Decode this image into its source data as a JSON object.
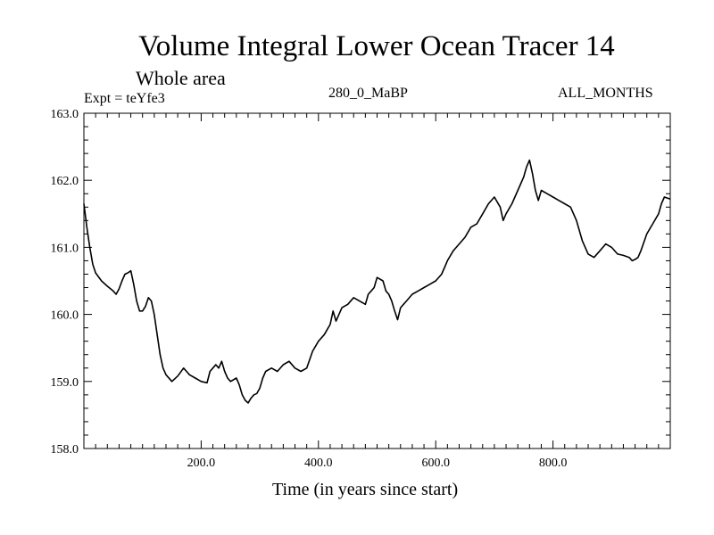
{
  "header": {
    "title": "Volume Integral Lower Ocean Tracer 14",
    "subtitle": "Whole area",
    "expt": "Expt = teYfe3",
    "center_label": "280_0_MaBP",
    "right_label": "ALL_MONTHS"
  },
  "chart_data": {
    "type": "line",
    "title": "Volume Integral Lower Ocean Tracer 14",
    "subtitle": "Whole area",
    "xlabel": "Time (in years since start)",
    "ylabel": "",
    "xlim": [
      0,
      1000
    ],
    "ylim": [
      158.0,
      163.0
    ],
    "xticks": [
      200,
      400,
      600,
      800
    ],
    "xtick_labels": [
      "200.0",
      "400.0",
      "600.0",
      "800.0"
    ],
    "yticks": [
      158.0,
      159.0,
      160.0,
      161.0,
      162.0,
      163.0
    ],
    "ytick_labels": [
      "158.0",
      "159.0",
      "160.0",
      "161.0",
      "162.0",
      "163.0"
    ],
    "grid": false,
    "series": [
      {
        "name": "Lower Ocean Tracer 14",
        "color": "#000000",
        "x": [
          0,
          5,
          10,
          15,
          20,
          30,
          40,
          50,
          55,
          60,
          65,
          70,
          75,
          80,
          85,
          90,
          95,
          100,
          105,
          110,
          115,
          120,
          125,
          130,
          135,
          140,
          150,
          160,
          170,
          175,
          180,
          190,
          200,
          210,
          215,
          220,
          225,
          230,
          235,
          240,
          245,
          250,
          260,
          265,
          270,
          275,
          280,
          285,
          290,
          295,
          300,
          305,
          310,
          320,
          330,
          340,
          350,
          360,
          370,
          380,
          390,
          400,
          410,
          420,
          425,
          430,
          440,
          450,
          460,
          470,
          480,
          485,
          490,
          495,
          500,
          510,
          515,
          520,
          525,
          530,
          535,
          540,
          545,
          550,
          560,
          570,
          580,
          590,
          600,
          610,
          615,
          620,
          630,
          640,
          650,
          660,
          670,
          680,
          690,
          700,
          710,
          715,
          720,
          730,
          740,
          745,
          750,
          755,
          760,
          765,
          770,
          775,
          780,
          790,
          800,
          810,
          820,
          830,
          840,
          850,
          860,
          870,
          880,
          890,
          900,
          910,
          920,
          930,
          935,
          940,
          945,
          950,
          960,
          970,
          980,
          985,
          990,
          1000
        ],
        "values": [
          161.65,
          161.3,
          161.0,
          160.75,
          160.62,
          160.5,
          160.42,
          160.35,
          160.3,
          160.38,
          160.5,
          160.6,
          160.62,
          160.65,
          160.45,
          160.2,
          160.05,
          160.05,
          160.12,
          160.25,
          160.2,
          160.0,
          159.7,
          159.4,
          159.2,
          159.1,
          159.0,
          159.08,
          159.2,
          159.15,
          159.1,
          159.05,
          159.0,
          158.98,
          159.15,
          159.2,
          159.25,
          159.2,
          159.3,
          159.15,
          159.05,
          159.0,
          159.05,
          158.95,
          158.8,
          158.72,
          158.68,
          158.75,
          158.8,
          158.82,
          158.9,
          159.05,
          159.15,
          159.2,
          159.15,
          159.25,
          159.3,
          159.2,
          159.15,
          159.2,
          159.45,
          159.6,
          159.7,
          159.85,
          160.05,
          159.9,
          160.1,
          160.15,
          160.25,
          160.2,
          160.15,
          160.3,
          160.35,
          160.4,
          160.55,
          160.5,
          160.35,
          160.3,
          160.2,
          160.05,
          159.92,
          160.1,
          160.15,
          160.2,
          160.3,
          160.35,
          160.4,
          160.45,
          160.5,
          160.6,
          160.7,
          160.8,
          160.95,
          161.05,
          161.15,
          161.3,
          161.35,
          161.5,
          161.65,
          161.75,
          161.6,
          161.4,
          161.5,
          161.65,
          161.85,
          161.95,
          162.05,
          162.2,
          162.3,
          162.1,
          161.85,
          161.7,
          161.85,
          161.8,
          161.75,
          161.7,
          161.65,
          161.6,
          161.4,
          161.1,
          160.9,
          160.85,
          160.95,
          161.05,
          161.0,
          160.9,
          160.88,
          160.85,
          160.8,
          160.82,
          160.85,
          160.95,
          161.2,
          161.35,
          161.5,
          161.65,
          161.75,
          161.72
        ]
      }
    ]
  }
}
